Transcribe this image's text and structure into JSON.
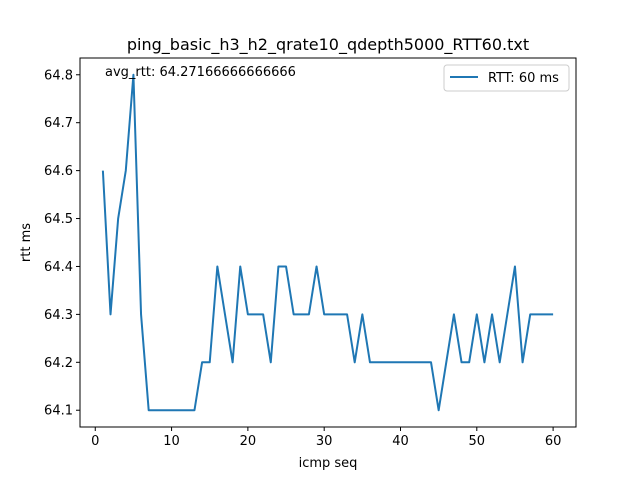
{
  "chart_data": {
    "type": "line",
    "title": "ping_basic_h3_h2_qrate10_qdepth5000_RTT60.txt",
    "xlabel": "icmp seq",
    "ylabel": "rtt ms",
    "xlim": [
      -2,
      63
    ],
    "ylim": [
      64.065,
      64.835
    ],
    "xticks": [
      0,
      10,
      20,
      30,
      40,
      50,
      60
    ],
    "yticks": [
      64.1,
      64.2,
      64.3,
      64.4,
      64.5,
      64.6,
      64.7,
      64.8
    ],
    "xtick_labels": [
      "0",
      "10",
      "20",
      "30",
      "40",
      "50",
      "60"
    ],
    "ytick_labels": [
      "64.1",
      "64.2",
      "64.3",
      "64.4",
      "64.5",
      "64.6",
      "64.7",
      "64.8"
    ],
    "grid": false,
    "legend_position": "top-right",
    "annotation": "avg_rtt: 64.27166666666666",
    "series": [
      {
        "name": "RTT: 60 ms",
        "color": "#1f77b4",
        "x": [
          1,
          2,
          3,
          4,
          5,
          6,
          7,
          8,
          9,
          10,
          11,
          12,
          13,
          14,
          15,
          16,
          17,
          18,
          19,
          20,
          21,
          22,
          23,
          24,
          25,
          26,
          27,
          28,
          29,
          30,
          31,
          32,
          33,
          34,
          35,
          36,
          37,
          38,
          39,
          40,
          41,
          42,
          43,
          44,
          45,
          46,
          47,
          48,
          49,
          50,
          51,
          52,
          53,
          54,
          55,
          56,
          57,
          58,
          59,
          60
        ],
        "y": [
          64.6,
          64.3,
          64.5,
          64.6,
          64.8,
          64.3,
          64.1,
          64.1,
          64.1,
          64.1,
          64.1,
          64.1,
          64.1,
          64.2,
          64.2,
          64.4,
          64.3,
          64.2,
          64.4,
          64.3,
          64.3,
          64.3,
          64.2,
          64.4,
          64.4,
          64.3,
          64.3,
          64.3,
          64.4,
          64.3,
          64.3,
          64.3,
          64.3,
          64.2,
          64.3,
          64.2,
          64.2,
          64.2,
          64.2,
          64.2,
          64.2,
          64.2,
          64.2,
          64.2,
          64.1,
          64.2,
          64.3,
          64.2,
          64.2,
          64.3,
          64.2,
          64.3,
          64.2,
          64.3,
          64.4,
          64.2,
          64.3,
          64.3,
          64.3,
          64.3
        ]
      }
    ]
  }
}
